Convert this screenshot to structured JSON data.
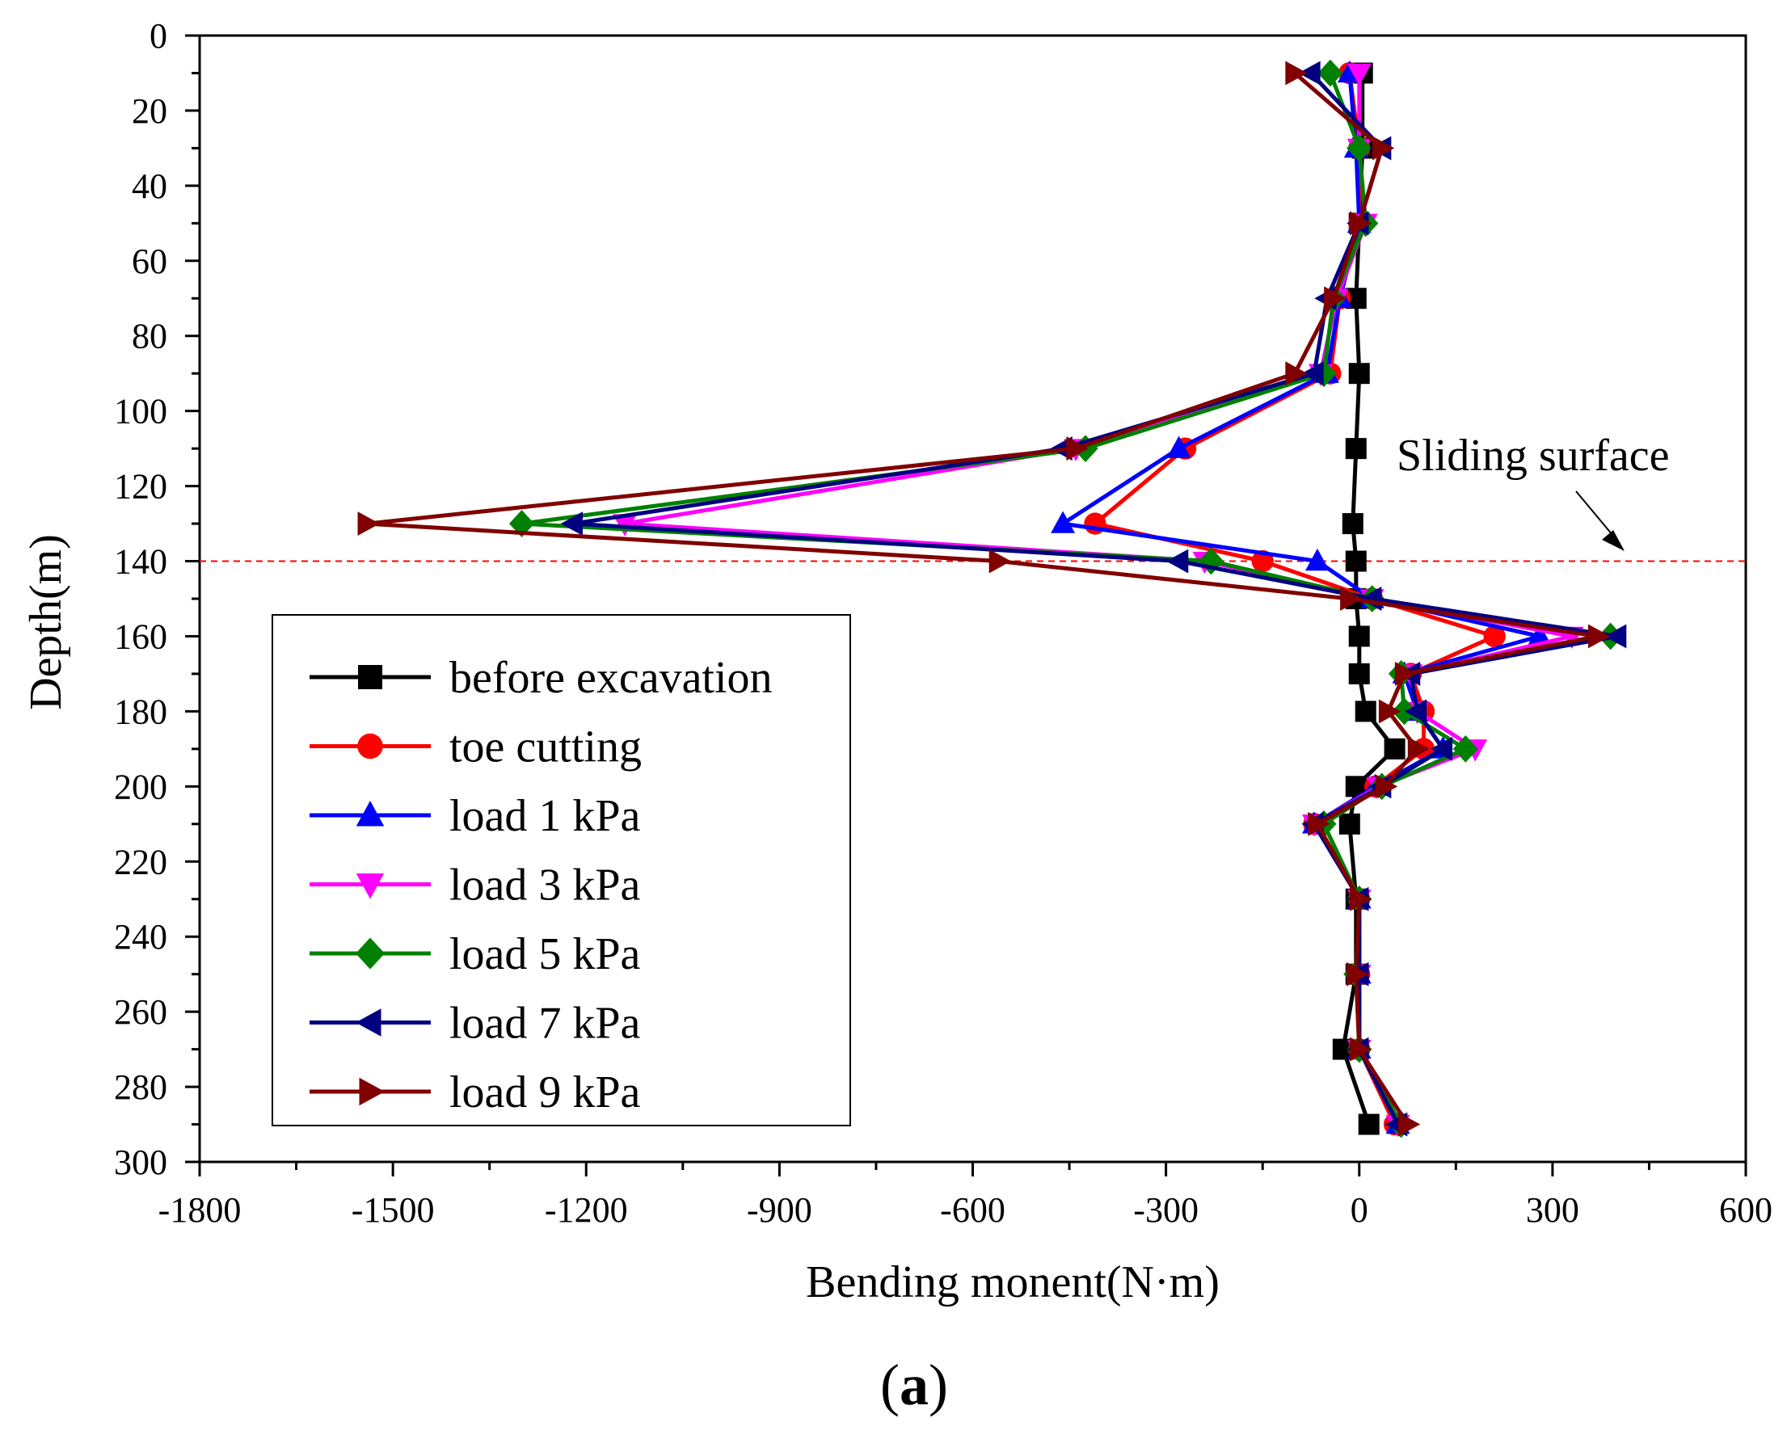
{
  "chart_data": {
    "type": "line",
    "xlabel": "Bending monent(N·m)",
    "ylabel": "Depth(m)",
    "xlim": [
      -1800,
      600
    ],
    "ylim": [
      0,
      300
    ],
    "y_inverted": true,
    "x_ticks": [
      -1800,
      -1500,
      -1200,
      -900,
      -600,
      -300,
      0,
      300,
      600
    ],
    "x_tick_labels": [
      "-1800",
      "-1500",
      "-1200",
      "-900",
      "-600",
      "-300",
      "0",
      "300",
      "600"
    ],
    "y_ticks": [
      0,
      20,
      40,
      60,
      80,
      100,
      120,
      140,
      160,
      180,
      200,
      220,
      240,
      260,
      280,
      300
    ],
    "y_tick_labels": [
      "0",
      "20",
      "40",
      "60",
      "80",
      "100",
      "120",
      "140",
      "160",
      "180",
      "200",
      "220",
      "240",
      "260",
      "280",
      "300"
    ],
    "grid": false,
    "legend_position": "left-middle",
    "annotation": {
      "text": "Sliding surface",
      "depth": 140
    },
    "panel_label": {
      "open": "(",
      "letter": "a",
      "close": ")"
    },
    "series": [
      {
        "name": "before excavation",
        "color": "#000000",
        "marker": "square",
        "x": [
          5,
          5,
          0,
          -5,
          0,
          -5,
          -10,
          -5,
          -5,
          0,
          0,
          10,
          55,
          -5,
          -15,
          -5,
          -5,
          -25,
          15
        ],
        "y": [
          10,
          30,
          50,
          70,
          90,
          110,
          130,
          140,
          150,
          160,
          170,
          180,
          190,
          200,
          210,
          230,
          250,
          270,
          290
        ]
      },
      {
        "name": "toe cutting",
        "color": "#ff0000",
        "marker": "circle",
        "x": [
          -15,
          0,
          0,
          -30,
          -45,
          -270,
          -410,
          -150,
          20,
          210,
          80,
          100,
          100,
          25,
          -70,
          0,
          0,
          0,
          55
        ],
        "y": [
          10,
          30,
          50,
          70,
          90,
          110,
          130,
          140,
          150,
          160,
          170,
          180,
          190,
          200,
          210,
          230,
          250,
          270,
          290
        ]
      },
      {
        "name": "load 1 kPa",
        "color": "#0000ff",
        "marker": "triangle-up",
        "x": [
          -15,
          -5,
          0,
          -30,
          -50,
          -280,
          -460,
          -65,
          20,
          280,
          70,
          90,
          130,
          25,
          -70,
          0,
          0,
          0,
          60
        ],
        "y": [
          10,
          30,
          50,
          70,
          90,
          110,
          130,
          140,
          150,
          160,
          170,
          180,
          190,
          200,
          210,
          230,
          250,
          270,
          290
        ]
      },
      {
        "name": "load 3 kPa",
        "color": "#ff00ff",
        "marker": "triangle-down",
        "x": [
          0,
          0,
          10,
          -35,
          -60,
          -440,
          -1140,
          -240,
          20,
          330,
          80,
          90,
          180,
          30,
          -70,
          0,
          0,
          0,
          60
        ],
        "y": [
          10,
          30,
          50,
          70,
          90,
          110,
          130,
          140,
          150,
          160,
          170,
          180,
          190,
          200,
          210,
          230,
          250,
          270,
          290
        ]
      },
      {
        "name": "load 5 kPa",
        "color": "#008000",
        "marker": "diamond",
        "x": [
          -45,
          0,
          10,
          -40,
          -55,
          -425,
          -1300,
          -230,
          20,
          390,
          65,
          70,
          165,
          35,
          -55,
          0,
          -5,
          0,
          65
        ],
        "y": [
          10,
          30,
          50,
          70,
          90,
          110,
          130,
          140,
          150,
          160,
          170,
          180,
          190,
          200,
          210,
          230,
          250,
          270,
          290
        ]
      },
      {
        "name": "load 7 kPa",
        "color": "#000080",
        "marker": "triangle-left",
        "x": [
          -75,
          35,
          0,
          -50,
          -70,
          -460,
          -1220,
          -280,
          20,
          400,
          80,
          90,
          130,
          35,
          -70,
          0,
          0,
          0,
          60
        ],
        "y": [
          10,
          30,
          50,
          70,
          90,
          110,
          130,
          140,
          150,
          160,
          170,
          180,
          190,
          200,
          210,
          230,
          250,
          270,
          290
        ]
      },
      {
        "name": "load 9 kPa",
        "color": "#800000",
        "marker": "triangle-right",
        "x": [
          -100,
          35,
          0,
          -40,
          -100,
          -440,
          -1540,
          -560,
          -15,
          370,
          70,
          45,
          90,
          40,
          -65,
          0,
          -5,
          0,
          75
        ],
        "y": [
          10,
          30,
          50,
          70,
          90,
          110,
          130,
          140,
          150,
          160,
          170,
          180,
          190,
          200,
          210,
          230,
          250,
          270,
          290
        ]
      }
    ]
  }
}
